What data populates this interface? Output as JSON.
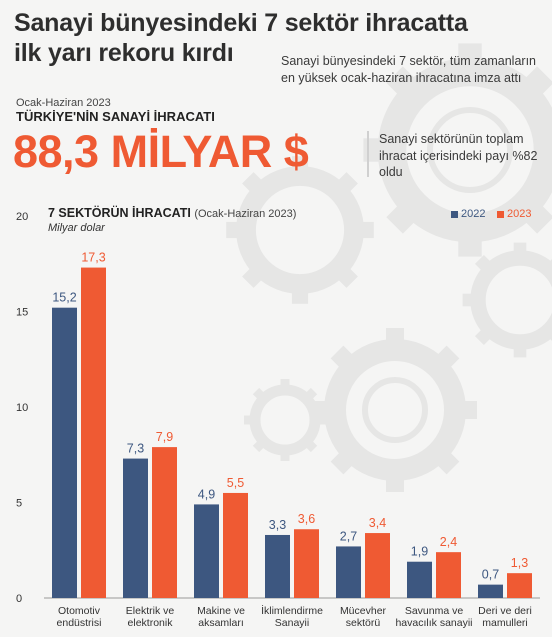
{
  "header": {
    "title_line1": "Sanayi bünyesindeki 7 sektör ihracatta",
    "title_line2": "ilk yarı rekoru kırdı",
    "intro": "Sanayi bünyesindeki 7 sektör, tüm zamanların en yüksek ocak-haziran ihracatına imza attı",
    "period": "Ocak-Haziran 2023",
    "heading": "TÜRKİYE'NİN SANAYİ İHRACATI",
    "big_value": "88,3 MİLYAR $",
    "share_note": "Sanayi sektörünün toplam ihracat içerisindeki payı %82 oldu"
  },
  "colors": {
    "series_2022": "#3d5780",
    "series_2023": "#ef5a33",
    "background": "#f5f5f4"
  },
  "chart_data": {
    "type": "bar",
    "title": "7 SEKTÖRÜN İHRACATI",
    "subtitle": "(Ocak-Haziran 2023)",
    "ylabel": "Milyar dolar",
    "xlabel": "",
    "ylim": [
      0,
      20
    ],
    "yticks": [
      0,
      5,
      10,
      15,
      20
    ],
    "grid": false,
    "legend_position": "top-right",
    "categories": [
      [
        "Otomotiv",
        "endüstrisi"
      ],
      [
        "Elektrik ve",
        "elektronik"
      ],
      [
        "Makine ve",
        "aksamları"
      ],
      [
        "İklimlendirme",
        "Sanayii"
      ],
      [
        "Mücevher",
        "sektörü"
      ],
      [
        "Savunma ve",
        "havacılık sanayii"
      ],
      [
        "Deri ve deri",
        "mamulleri"
      ]
    ],
    "series": [
      {
        "name": "2022",
        "values": [
          15.2,
          7.3,
          4.9,
          3.3,
          2.7,
          1.9,
          0.7
        ],
        "labels": [
          "15,2",
          "7,3",
          "4,9",
          "3,3",
          "2,7",
          "1,9",
          "0,7"
        ]
      },
      {
        "name": "2023",
        "values": [
          17.3,
          7.9,
          5.5,
          3.6,
          3.4,
          2.4,
          1.3
        ],
        "labels": [
          "17,3",
          "7,9",
          "5,5",
          "3,6",
          "3,4",
          "2,4",
          "1,3"
        ]
      }
    ]
  }
}
